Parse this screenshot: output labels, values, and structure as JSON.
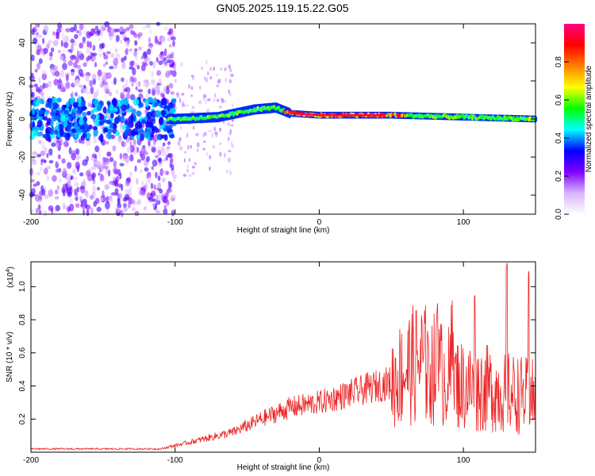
{
  "title": "GN05.2025.119.15.22.G05",
  "chart_data": [
    {
      "type": "heatmap",
      "xlabel": "Height of straight line (km)",
      "ylabel": "Frequency (Hz)",
      "xlim": [
        -200,
        150
      ],
      "ylim": [
        -50,
        50
      ],
      "x_ticks": [
        -200,
        -100,
        0,
        100
      ],
      "y_ticks": [
        -40,
        -20,
        0,
        20,
        40
      ],
      "grid": false,
      "colorbar": {
        "label": "Normalized spectral amplitude",
        "range": [
          0.0,
          1.0
        ],
        "ticks": [
          "0.0",
          "0.2",
          "0.4",
          "0.6",
          "0.8"
        ],
        "colormap": [
          "#ffffff",
          "#d9b3ff",
          "#8000ff",
          "#0000ff",
          "#00ffff",
          "#00ff00",
          "#ffff00",
          "#ff8000",
          "#ff0000",
          "#ff0080"
        ]
      },
      "description_of_field": {
        "ridge_center_hz": [
          [
            -200,
            0
          ],
          [
            -100,
            0
          ],
          [
            -70,
            1
          ],
          [
            -45,
            5
          ],
          [
            -30,
            6
          ],
          [
            -20,
            3
          ],
          [
            0,
            2
          ],
          [
            50,
            2
          ],
          [
            100,
            1
          ],
          [
            150,
            0
          ]
        ],
        "noise_region_x": [
          -200,
          -100
        ],
        "noise_spread_hz": [
          -50,
          50
        ]
      }
    },
    {
      "type": "line",
      "xlabel": "Height of straight line (km)",
      "ylabel": "SNR (10 * v/v)",
      "y_multiplier": "(x10",
      "y_multiplier_exponent": "4",
      "xlim": [
        -200,
        150
      ],
      "ylim": [
        0,
        1.15
      ],
      "x_ticks": [
        -200,
        -100,
        0,
        100
      ],
      "y_ticks": [
        "0.2",
        "0.4",
        "0.6",
        "0.8",
        "1.0"
      ],
      "grid": false,
      "series": [
        {
          "color": "#ee2222",
          "envelope_points": [
            [
              -200,
              0.02
            ],
            [
              -110,
              0.02
            ],
            [
              -100,
              0.04
            ],
            [
              -80,
              0.08
            ],
            [
              -60,
              0.12
            ],
            [
              -40,
              0.2
            ],
            [
              -20,
              0.27
            ],
            [
              0,
              0.3
            ],
            [
              20,
              0.35
            ],
            [
              40,
              0.4
            ],
            [
              50,
              0.42
            ],
            [
              60,
              0.5
            ],
            [
              70,
              0.55
            ],
            [
              80,
              0.5
            ],
            [
              90,
              0.45
            ],
            [
              100,
              0.4
            ],
            [
              120,
              0.38
            ],
            [
              130,
              0.36
            ],
            [
              150,
              0.33
            ]
          ],
          "peaks": [
            [
              75,
              0.75
            ],
            [
              82,
              0.9
            ],
            [
              92,
              0.92
            ],
            [
              108,
              0.95
            ],
            [
              130,
              1.15
            ],
            [
              145,
              1.1
            ]
          ]
        }
      ]
    }
  ]
}
